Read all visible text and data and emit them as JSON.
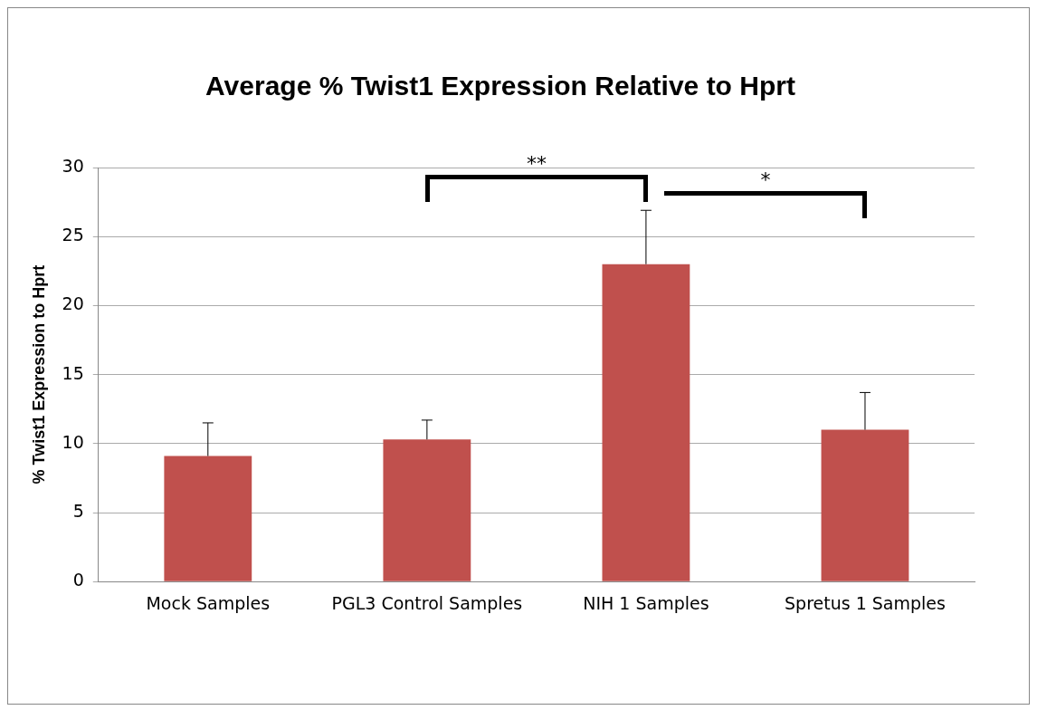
{
  "chart_data": {
    "type": "bar",
    "title": "Average % Twist1 Expression Relative to Hprt",
    "ylabel": "% Twist1 Expression to Hprt",
    "categories": [
      "Mock Samples",
      "PGL3 Control Samples",
      "NIH 1 Samples",
      "Spretus 1 Samples"
    ],
    "values": [
      9.1,
      10.3,
      23.0,
      11.0
    ],
    "errors": [
      2.4,
      1.4,
      3.9,
      2.7
    ],
    "color": "#c0504d",
    "ylim": [
      0,
      30
    ],
    "yticks": [
      0,
      5,
      10,
      15,
      20,
      25,
      30
    ],
    "grid": "y",
    "legend": false,
    "annotations": [
      "**",
      "*"
    ]
  }
}
